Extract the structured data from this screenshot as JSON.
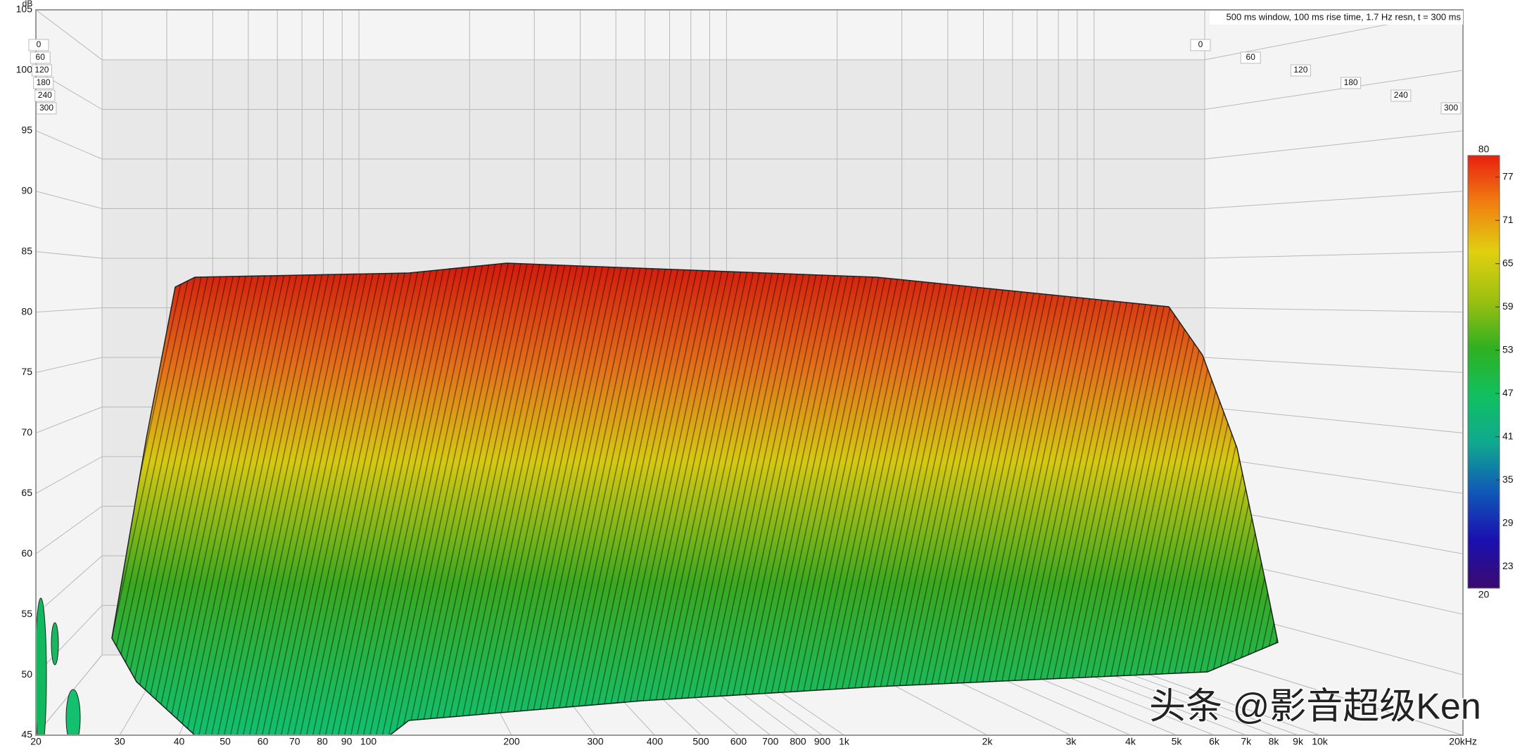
{
  "chart_data": {
    "type": "waterfall",
    "y_label": "dB",
    "annotation": "500 ms window, 100 ms rise time,  1.7 Hz resn, t = 300 ms",
    "watermark": "头条 @影音超级Ken",
    "xscale": "log",
    "xlim": [
      20,
      20000
    ],
    "xticks": [
      20,
      30,
      40,
      50,
      60,
      70,
      80,
      90,
      100,
      200,
      300,
      400,
      500,
      600,
      700,
      800,
      900,
      {
        "value": 1000,
        "label": "1k"
      },
      {
        "value": 2000,
        "label": "2k"
      },
      {
        "value": 3000,
        "label": "3k"
      },
      {
        "value": 4000,
        "label": "4k"
      },
      {
        "value": 5000,
        "label": "5k"
      },
      {
        "value": 6000,
        "label": "6k"
      },
      {
        "value": 7000,
        "label": "7k"
      },
      {
        "value": 8000,
        "label": "8k"
      },
      {
        "value": 9000,
        "label": "9k"
      },
      {
        "value": 10000,
        "label": "10k"
      },
      {
        "value": 20000,
        "label": "20kHz"
      }
    ],
    "ylim": [
      45,
      105
    ],
    "yticks": [
      45,
      50,
      55,
      60,
      65,
      70,
      75,
      80,
      85,
      90,
      95,
      100,
      105
    ],
    "tlim": [
      0,
      300
    ],
    "tticks": [
      0,
      60,
      120,
      180,
      240,
      300
    ],
    "grid": true,
    "colorbar": {
      "lim": [
        20,
        80
      ],
      "ticks": [
        20,
        23,
        29,
        35,
        41,
        47,
        53,
        59,
        65,
        71,
        77,
        80
      ],
      "colormap": [
        "#3a0a6e",
        "#1a10b0",
        "#1058b8",
        "#10a890",
        "#10c060",
        "#30b020",
        "#9ec010",
        "#e0d010",
        "#f08010",
        "#e82010"
      ]
    }
  }
}
